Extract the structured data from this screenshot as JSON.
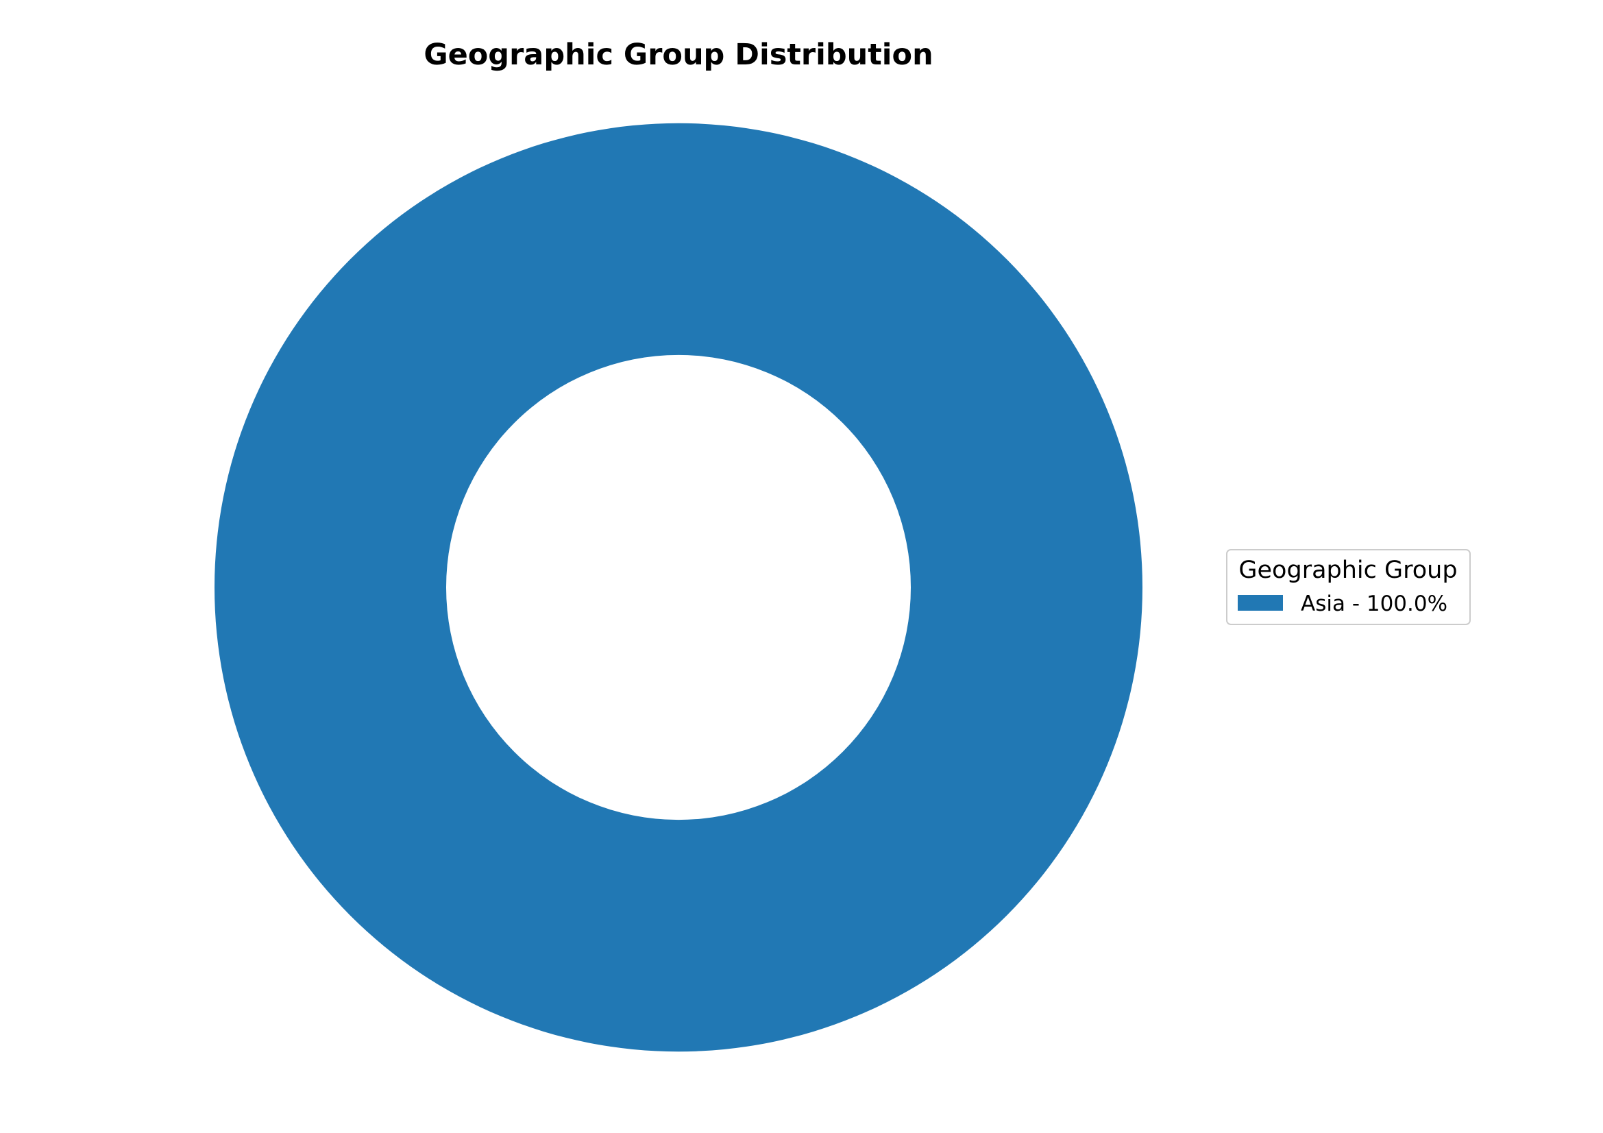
{
  "chart_data": {
    "type": "pie",
    "variant": "donut",
    "title": "Geographic Group Distribution",
    "legend": {
      "title": "Geographic Group",
      "placement": "center-right"
    },
    "slices": [
      {
        "label": "Asia",
        "value": 100.0,
        "percent_label": "Asia - 100.0%",
        "color": "#2178b4"
      }
    ]
  }
}
